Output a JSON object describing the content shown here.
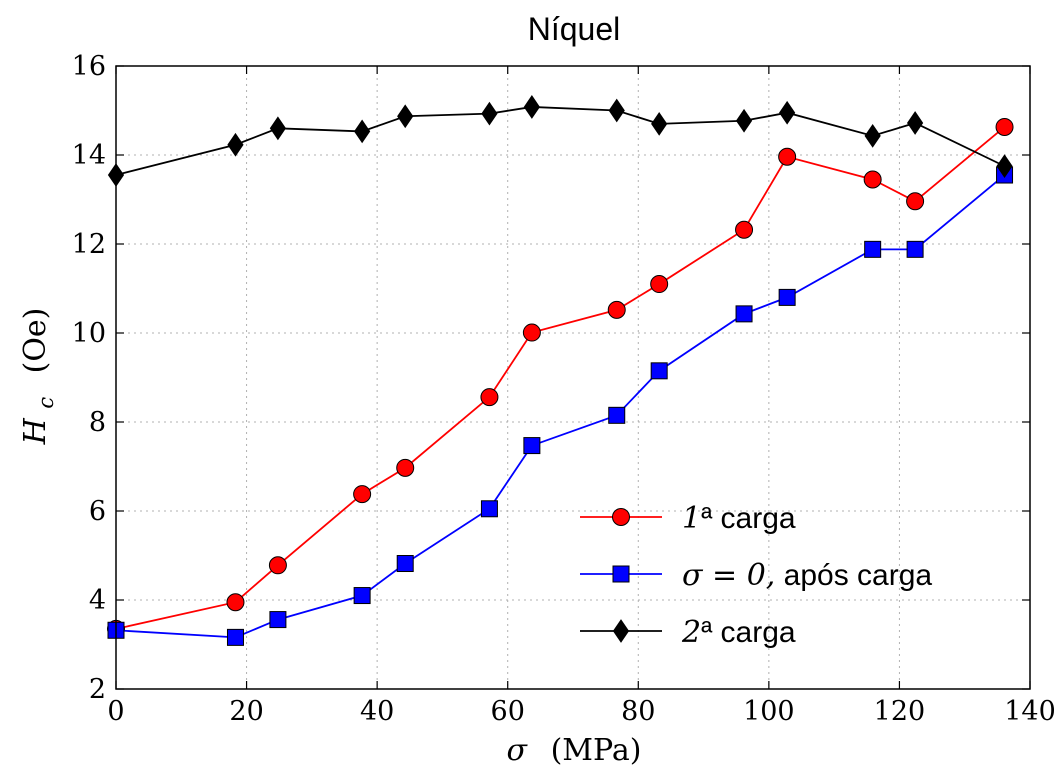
{
  "chart_data": {
    "type": "line",
    "title": "Níquel",
    "xlabel": {
      "symbol": "σ",
      "unit": "(MPa)"
    },
    "ylabel": {
      "symbol": "H",
      "subscript": "c",
      "unit": "(Oe)"
    },
    "xlim": [
      0,
      140
    ],
    "ylim": [
      2,
      16
    ],
    "xticks": [
      0,
      20,
      40,
      60,
      80,
      100,
      120,
      140
    ],
    "yticks": [
      2,
      4,
      6,
      8,
      10,
      12,
      14,
      16
    ],
    "grid": true,
    "legend_position": "lower-right",
    "series": [
      {
        "name": "1ª carga",
        "legend_math": "1",
        "legend_text": "ª carga",
        "color": "#ff0000",
        "marker": "circle",
        "x": [
          0,
          18.3,
          24.8,
          37.7,
          44.3,
          57.2,
          63.7,
          76.7,
          83.2,
          96.2,
          102.8,
          115.9,
          122.4,
          136.1
        ],
        "y": [
          3.35,
          3.95,
          4.78,
          6.38,
          6.97,
          8.56,
          10.01,
          10.52,
          11.1,
          12.32,
          13.96,
          13.45,
          12.96,
          14.63
        ]
      },
      {
        "name": "σ = 0, após carga",
        "legend_math": "σ = 0,",
        "legend_text": " após carga",
        "color": "#0000ff",
        "marker": "square",
        "x": [
          0,
          18.3,
          24.8,
          37.7,
          44.3,
          57.2,
          63.7,
          76.7,
          83.2,
          96.2,
          102.8,
          115.9,
          122.4,
          136.1
        ],
        "y": [
          3.32,
          3.16,
          3.56,
          4.1,
          4.82,
          6.05,
          7.47,
          8.15,
          9.15,
          10.43,
          10.8,
          11.88,
          11.88,
          13.55
        ]
      },
      {
        "name": "2ª carga",
        "legend_math": "2",
        "legend_text": "ª carga",
        "color": "#000000",
        "marker": "diamond",
        "x": [
          0,
          18.3,
          24.8,
          37.7,
          44.3,
          57.2,
          63.7,
          76.7,
          83.2,
          96.2,
          102.8,
          115.9,
          122.4,
          136.1
        ],
        "y": [
          13.55,
          14.23,
          14.6,
          14.53,
          14.87,
          14.93,
          15.08,
          15.0,
          14.7,
          14.77,
          14.95,
          14.43,
          14.72,
          13.75
        ]
      }
    ]
  }
}
